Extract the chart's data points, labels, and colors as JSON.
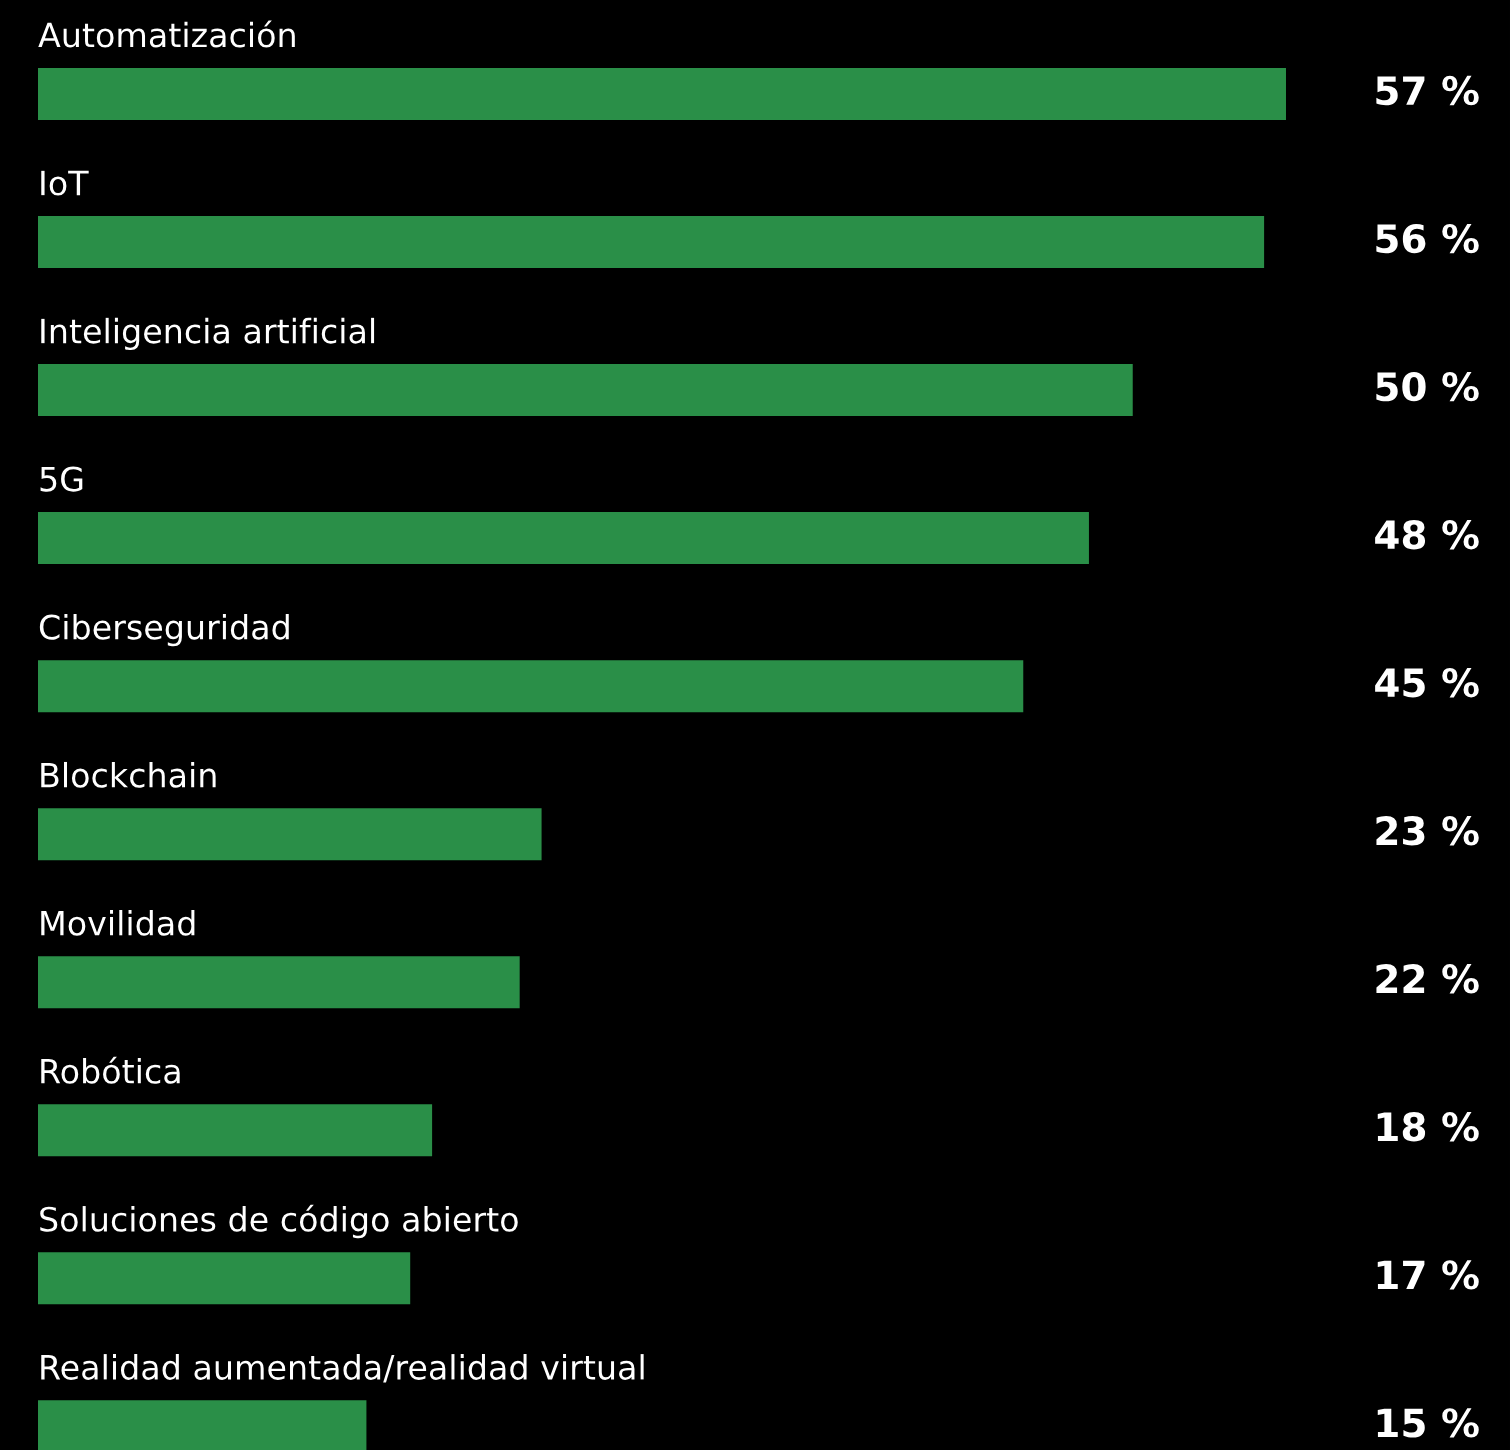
{
  "chart_data": {
    "type": "bar",
    "orientation": "horizontal",
    "categories": [
      "Automatización",
      "IoT",
      "Inteligencia artificial",
      "5G",
      "Ciberseguridad",
      "Blockchain",
      "Movilidad",
      "Robótica",
      "Soluciones de código abierto",
      "Realidad aumentada/realidad virtual"
    ],
    "values": [
      57,
      56,
      50,
      48,
      45,
      23,
      22,
      18,
      17,
      15
    ],
    "value_labels": [
      "57 %",
      "56 %",
      "50 %",
      "48 %",
      "45 %",
      "23 %",
      "22 %",
      "18 %",
      "17 %",
      "15 %"
    ],
    "color": "#2a8f48"
  }
}
